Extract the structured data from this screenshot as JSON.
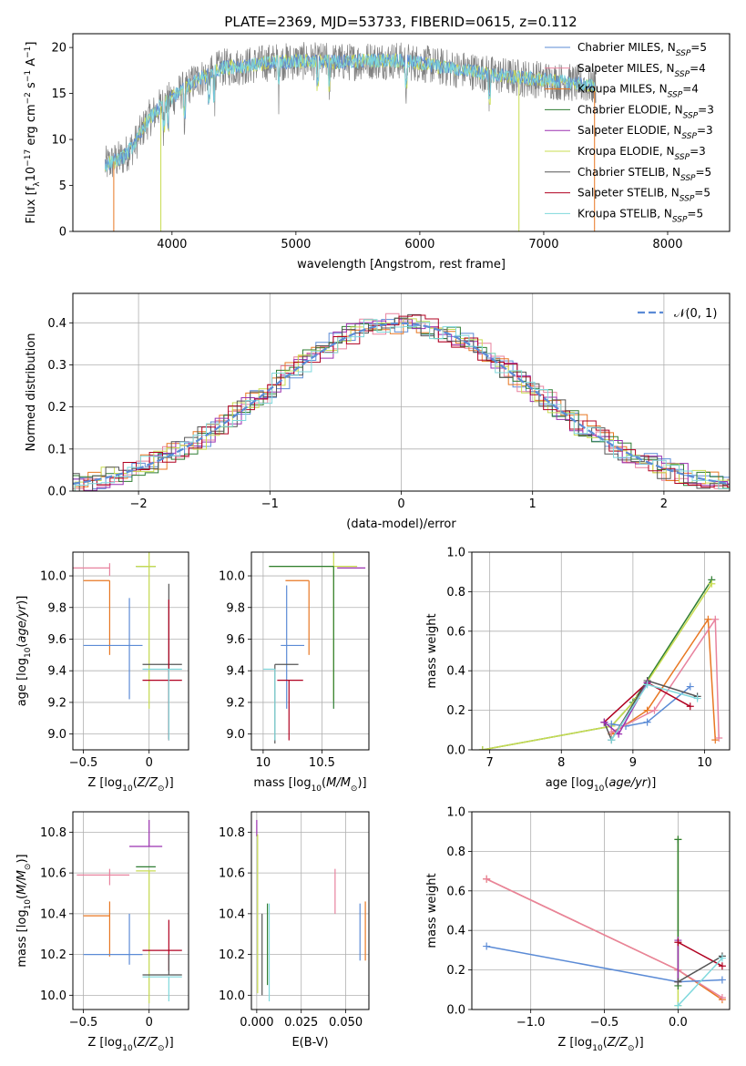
{
  "figure_title": "PLATE=2369, MJD=53733, FIBERID=0615, z=0.112",
  "colors": {
    "chabrier_miles": "#5b8bd6",
    "salpeter_miles": "#e8829e",
    "kroupa_miles": "#e87722",
    "chabrier_elodie": "#2e7d32",
    "salpeter_elodie": "#9b30b0",
    "kroupa_elodie": "#c8dc50",
    "chabrier_stelib": "#555555",
    "salpeter_stelib": "#b00020",
    "kroupa_stelib": "#7fd8dc",
    "spectrum_data": "#808080",
    "gauss": "#5b8bd6",
    "grid": "#b0b0b0"
  },
  "chart_data": [
    {
      "id": "spectrum",
      "type": "line",
      "title": "PLATE=2369, MJD=53733, FIBERID=0615, z=0.112",
      "xlabel": "wavelength [Angstrom, rest frame]",
      "ylabel": "Flux [f",
      "ylabel_full": "Flux [fλ10⁻¹⁷ erg cm⁻² s⁻¹ A⁻¹]",
      "xlim": [
        3200,
        8500
      ],
      "ylim": [
        0,
        21.5
      ],
      "xticks": [
        4000,
        5000,
        6000,
        7000,
        8000
      ],
      "yticks": [
        0,
        5,
        10,
        15,
        20
      ],
      "grid": false,
      "legend_position": "right",
      "legend": [
        {
          "key": "chabrier_miles",
          "label": "Chabrier MILES, N",
          "sub": "SSP",
          "val": "=5"
        },
        {
          "key": "salpeter_miles",
          "label": "Salpeter MILES, N",
          "sub": "SSP",
          "val": "=4"
        },
        {
          "key": "kroupa_miles",
          "label": "Kroupa MILES, N",
          "sub": "SSP",
          "val": "=4"
        },
        {
          "key": "chabrier_elodie",
          "label": "Chabrier ELODIE, N",
          "sub": "SSP",
          "val": "=3"
        },
        {
          "key": "salpeter_elodie",
          "label": "Salpeter ELODIE, N",
          "sub": "SSP",
          "val": "=3"
        },
        {
          "key": "kroupa_elodie",
          "label": "Kroupa ELODIE, N",
          "sub": "SSP",
          "val": "=3"
        },
        {
          "key": "chabrier_stelib",
          "label": "Chabrier STELIB, N",
          "sub": "SSP",
          "val": "=5"
        },
        {
          "key": "salpeter_stelib",
          "label": "Salpeter STELIB, N",
          "sub": "SSP",
          "val": "=5"
        },
        {
          "key": "kroupa_stelib",
          "label": "Kroupa STELIB, N",
          "sub": "SSP",
          "val": "=5"
        }
      ],
      "continuum": [
        [
          3460,
          7.2
        ],
        [
          3600,
          8.0
        ],
        [
          3700,
          9.5
        ],
        [
          3800,
          12.0
        ],
        [
          3900,
          13.5
        ],
        [
          4000,
          14.5
        ],
        [
          4100,
          15.5
        ],
        [
          4200,
          16.5
        ],
        [
          4300,
          17.0
        ],
        [
          4400,
          17.8
        ],
        [
          4600,
          18.0
        ],
        [
          4800,
          18.4
        ],
        [
          5000,
          18.5
        ],
        [
          5200,
          18.5
        ],
        [
          5400,
          18.4
        ],
        [
          5600,
          18.6
        ],
        [
          5800,
          18.6
        ],
        [
          6000,
          18.3
        ],
        [
          6200,
          17.8
        ],
        [
          6400,
          17.5
        ],
        [
          6600,
          17.0
        ],
        [
          6800,
          16.7
        ],
        [
          7000,
          16.5
        ],
        [
          7200,
          16.2
        ],
        [
          7400,
          15.8
        ]
      ],
      "model_dropouts": [
        {
          "key": "kroupa_miles",
          "x": 3530
        },
        {
          "key": "kroupa_elodie",
          "x": 3910
        },
        {
          "key": "kroupa_elodie",
          "x": 6800
        },
        {
          "key": "kroupa_miles",
          "x": 7410
        }
      ]
    },
    {
      "id": "residuals",
      "type": "histogram",
      "xlabel": "(data-model)/error",
      "ylabel": "Normed distribution",
      "xlim": [
        -2.5,
        2.5
      ],
      "ylim": [
        0,
        0.47
      ],
      "xticks": [
        -2,
        -1,
        0,
        1,
        2
      ],
      "yticks": [
        0.0,
        0.1,
        0.2,
        0.3,
        0.4
      ],
      "grid": true,
      "legend": [
        {
          "label": "N(0,1)",
          "display": "𝒩(0, 1)"
        }
      ],
      "gauss": {
        "mu": 0,
        "sigma": 1
      },
      "bin_width": 0.1
    },
    {
      "id": "age_vs_Z",
      "type": "errorbar",
      "xlabel": "Z [log",
      "xlabel_full": "Z [log₁₀(Z/Z☉)]",
      "ylabel": "age  [log₁₀(age/yr)]",
      "xlim": [
        -0.58,
        0.3
      ],
      "ylim": [
        8.9,
        10.15
      ],
      "xticks": [
        -0.5,
        0.0
      ],
      "yticks": [
        9.0,
        9.2,
        9.4,
        9.6,
        9.8,
        10.0
      ],
      "grid": true,
      "points": [
        {
          "key": "salpeter_miles",
          "x": -0.3,
          "y": 10.05,
          "xerr": [
            0.55,
            0.0
          ],
          "yerr": [
            0.05,
            0.03
          ]
        },
        {
          "key": "kroupa_miles",
          "x": -0.3,
          "y": 9.97,
          "xerr": [
            0.2,
            0.0
          ],
          "yerr": [
            0.47,
            0.0
          ]
        },
        {
          "key": "chabrier_miles",
          "x": -0.15,
          "y": 9.56,
          "xerr": [
            0.35,
            0.1
          ],
          "yerr": [
            0.34,
            0.3
          ]
        },
        {
          "key": "chabrier_elodie",
          "x": 0.0,
          "y": 10.06,
          "xerr": [
            0.1,
            0.05
          ],
          "yerr": [
            0.0,
            0.0
          ]
        },
        {
          "key": "kroupa_elodie",
          "x": 0.0,
          "y": 10.06,
          "xerr": [
            0.1,
            0.05
          ],
          "yerr": [
            0.9,
            0.09
          ]
        },
        {
          "key": "chabrier_stelib",
          "x": 0.15,
          "y": 9.44,
          "xerr": [
            0.2,
            0.1
          ],
          "yerr": [
            0.47,
            0.51
          ]
        },
        {
          "key": "salpeter_stelib",
          "x": 0.15,
          "y": 9.34,
          "xerr": [
            0.2,
            0.1
          ],
          "yerr": [
            0.38,
            0.51
          ]
        },
        {
          "key": "kroupa_stelib",
          "x": 0.15,
          "y": 9.41,
          "xerr": [
            0.2,
            0.1
          ],
          "yerr": [
            0.45,
            0.0
          ]
        }
      ]
    },
    {
      "id": "age_vs_mass",
      "type": "errorbar",
      "xlabel": "mass [log₁₀(M/M☉)]",
      "xlim": [
        9.9,
        10.9
      ],
      "ylim": [
        8.9,
        10.15
      ],
      "xticks": [
        10.0,
        10.5
      ],
      "yticks": [
        9.0,
        9.2,
        9.4,
        9.6,
        9.8,
        10.0
      ],
      "grid": true,
      "points": [
        {
          "key": "salpeter_elodie",
          "x": 10.75,
          "y": 10.05,
          "xerr": [
            0.12,
            0.12
          ],
          "yerr": [
            0.0,
            0.0
          ]
        },
        {
          "key": "kroupa_elodie",
          "x": 10.6,
          "y": 10.06,
          "xerr": [
            0.55,
            0.2
          ],
          "yerr": [
            0.85,
            0.1
          ]
        },
        {
          "key": "chabrier_elodie",
          "x": 10.6,
          "y": 10.06,
          "xerr": [
            0.55,
            0.0
          ],
          "yerr": [
            0.9,
            0.0
          ]
        },
        {
          "key": "salpeter_miles",
          "x": 10.59,
          "y": 10.05,
          "xerr": [
            0.0,
            0.0
          ],
          "yerr": [
            0.0,
            0.0
          ]
        },
        {
          "key": "kroupa_miles",
          "x": 10.39,
          "y": 9.97,
          "xerr": [
            0.2,
            0.0
          ],
          "yerr": [
            0.47,
            0.0
          ]
        },
        {
          "key": "chabrier_miles",
          "x": 10.2,
          "y": 9.56,
          "xerr": [
            0.05,
            0.15
          ],
          "yerr": [
            0.4,
            0.38
          ]
        },
        {
          "key": "chabrier_stelib",
          "x": 10.1,
          "y": 9.44,
          "xerr": [
            0.0,
            0.2
          ],
          "yerr": [
            0.5,
            0.0
          ]
        },
        {
          "key": "salpeter_stelib",
          "x": 10.22,
          "y": 9.34,
          "xerr": [
            0.1,
            0.12
          ],
          "yerr": [
            0.38,
            0.0
          ]
        },
        {
          "key": "kroupa_stelib",
          "x": 10.1,
          "y": 9.41,
          "xerr": [
            0.1,
            0.0
          ],
          "yerr": [
            0.45,
            0.0
          ]
        }
      ]
    },
    {
      "id": "weight_vs_age",
      "type": "line",
      "xlabel": "age  [log₁₀(age/yr)]",
      "ylabel": "mass weight",
      "xlim": [
        6.75,
        10.35
      ],
      "ylim": [
        0,
        1
      ],
      "xticks": [
        7,
        8,
        9,
        10
      ],
      "yticks": [
        0.0,
        0.2,
        0.4,
        0.6,
        0.8,
        1.0
      ],
      "grid": true,
      "series": [
        {
          "key": "chabrier_elodie",
          "x": [
            6.9,
            8.7,
            9.0,
            10.1
          ],
          "y": [
            0.0,
            0.12,
            0.24,
            0.86
          ]
        },
        {
          "key": "kroupa_elodie",
          "x": [
            6.9,
            8.7,
            9.05,
            10.1
          ],
          "y": [
            0.0,
            0.12,
            0.26,
            0.84
          ]
        },
        {
          "key": "chabrier_miles",
          "x": [
            8.7,
            8.9,
            9.2,
            9.8
          ],
          "y": [
            0.13,
            0.12,
            0.14,
            0.32
          ]
        },
        {
          "key": "kroupa_miles",
          "x": [
            8.7,
            9.2,
            10.05,
            10.15
          ],
          "y": [
            0.08,
            0.2,
            0.66,
            0.05
          ]
        },
        {
          "key": "salpeter_miles",
          "x": [
            8.7,
            9.3,
            10.15,
            10.2
          ],
          "y": [
            0.09,
            0.2,
            0.66,
            0.06
          ]
        },
        {
          "key": "salpeter_stelib",
          "x": [
            8.6,
            9.2,
            9.8
          ],
          "y": [
            0.14,
            0.34,
            0.22
          ]
        },
        {
          "key": "chabrier_stelib",
          "x": [
            8.6,
            8.7,
            9.2,
            9.9
          ],
          "y": [
            0.14,
            0.05,
            0.35,
            0.27
          ]
        },
        {
          "key": "salpeter_elodie",
          "x": [
            8.6,
            8.8,
            9.2
          ],
          "y": [
            0.14,
            0.08,
            0.34
          ]
        },
        {
          "key": "kroupa_stelib",
          "x": [
            8.7,
            9.2,
            9.9
          ],
          "y": [
            0.05,
            0.33,
            0.26
          ]
        }
      ]
    },
    {
      "id": "mass_vs_Z",
      "type": "errorbar",
      "xlabel": "Z [log₁₀(Z/Z☉)]",
      "ylabel": "mass [log₁₀(M/M☉)]",
      "xlim": [
        -0.58,
        0.3
      ],
      "ylim": [
        9.93,
        10.9
      ],
      "xticks": [
        -0.5,
        0.0
      ],
      "yticks": [
        10.0,
        10.2,
        10.4,
        10.6,
        10.8
      ],
      "grid": true,
      "points": [
        {
          "key": "salpeter_elodie",
          "x": 0.0,
          "y": 10.73,
          "xerr": [
            0.15,
            0.1
          ],
          "yerr": [
            0.0,
            0.13
          ]
        },
        {
          "key": "chabrier_elodie",
          "x": 0.0,
          "y": 10.63,
          "xerr": [
            0.1,
            0.05
          ],
          "yerr": [
            0.0,
            0.0
          ]
        },
        {
          "key": "kroupa_elodie",
          "x": 0.0,
          "y": 10.61,
          "xerr": [
            0.1,
            0.05
          ],
          "yerr": [
            0.65,
            0.0
          ]
        },
        {
          "key": "salpeter_miles",
          "x": -0.3,
          "y": 10.59,
          "xerr": [
            0.25,
            0.15
          ],
          "yerr": [
            0.05,
            0.03
          ]
        },
        {
          "key": "kroupa_miles",
          "x": -0.3,
          "y": 10.39,
          "xerr": [
            0.2,
            0.0
          ],
          "yerr": [
            0.2,
            0.07
          ]
        },
        {
          "key": "chabrier_miles",
          "x": -0.15,
          "y": 10.2,
          "xerr": [
            0.35,
            0.1
          ],
          "yerr": [
            0.05,
            0.2
          ]
        },
        {
          "key": "salpeter_stelib",
          "x": 0.15,
          "y": 10.22,
          "xerr": [
            0.2,
            0.1
          ],
          "yerr": [
            0.1,
            0.15
          ]
        },
        {
          "key": "chabrier_stelib",
          "x": 0.15,
          "y": 10.1,
          "xerr": [
            0.2,
            0.1
          ],
          "yerr": [
            0.0,
            0.1
          ]
        },
        {
          "key": "kroupa_stelib",
          "x": 0.15,
          "y": 10.09,
          "xerr": [
            0.2,
            0.1
          ],
          "yerr": [
            0.12,
            0.0
          ]
        }
      ]
    },
    {
      "id": "mass_vs_ebv",
      "type": "errorbar",
      "xlabel": "E(B-V)",
      "xlim": [
        -0.003,
        0.063
      ],
      "ylim": [
        9.93,
        10.9
      ],
      "xticks": [
        0.0,
        0.025,
        0.05
      ],
      "xticklabels": [
        "0.000",
        "0.025",
        "0.050"
      ],
      "yticks": [
        10.0,
        10.2,
        10.4,
        10.6,
        10.8
      ],
      "grid": true,
      "points": [
        {
          "key": "salpeter_elodie",
          "x": 0.0,
          "y": 10.78,
          "xerr": [
            0,
            0
          ],
          "yerr": [
            0.0,
            0.08
          ]
        },
        {
          "key": "kroupa_elodie",
          "x": 0.0005,
          "y": 10.61,
          "xerr": [
            0,
            0
          ],
          "yerr": [
            0.6,
            0.18
          ]
        },
        {
          "key": "chabrier_stelib",
          "x": 0.003,
          "y": 10.25,
          "xerr": [
            0,
            0
          ],
          "yerr": [
            0.25,
            0.15
          ]
        },
        {
          "key": "chabrier_elodie",
          "x": 0.006,
          "y": 10.25,
          "xerr": [
            0,
            0
          ],
          "yerr": [
            0.2,
            0.2
          ]
        },
        {
          "key": "kroupa_stelib",
          "x": 0.007,
          "y": 10.25,
          "xerr": [
            0,
            0
          ],
          "yerr": [
            0.28,
            0.2
          ]
        },
        {
          "key": "salpeter_miles",
          "x": 0.044,
          "y": 10.5,
          "xerr": [
            0,
            0
          ],
          "yerr": [
            0.1,
            0.12
          ]
        },
        {
          "key": "chabrier_miles",
          "x": 0.058,
          "y": 10.3,
          "xerr": [
            0,
            0
          ],
          "yerr": [
            0.13,
            0.15
          ]
        },
        {
          "key": "kroupa_miles",
          "x": 0.061,
          "y": 10.3,
          "xerr": [
            0,
            0
          ],
          "yerr": [
            0.13,
            0.16
          ]
        }
      ]
    },
    {
      "id": "weight_vs_Z",
      "type": "line",
      "xlabel": "Z [log₁₀(Z/Z☉)]",
      "ylabel": "mass weight",
      "xlim": [
        -1.4,
        0.35
      ],
      "ylim": [
        0,
        1
      ],
      "xticks": [
        -1.0,
        -0.5,
        0.0
      ],
      "xticklabels": [
        "−1.0",
        "−0.5",
        "0.0"
      ],
      "yticks": [
        0.0,
        0.2,
        0.4,
        0.6,
        0.8,
        1.0
      ],
      "grid": true,
      "series": [
        {
          "key": "kroupa_miles",
          "x": [
            -1.3,
            0.0,
            0.3
          ],
          "y": [
            0.66,
            0.2,
            0.05
          ]
        },
        {
          "key": "salpeter_miles",
          "x": [
            -1.3,
            0.0,
            0.3
          ],
          "y": [
            0.66,
            0.2,
            0.06
          ]
        },
        {
          "key": "chabrier_miles",
          "x": [
            -1.3,
            0.0,
            0.3
          ],
          "y": [
            0.32,
            0.14,
            0.15
          ]
        },
        {
          "key": "kroupa_elodie",
          "x": [
            0.0,
            0.0
          ],
          "y": [
            0.02,
            0.86
          ]
        },
        {
          "key": "chabrier_elodie",
          "x": [
            0.0,
            0.0
          ],
          "y": [
            0.12,
            0.86
          ]
        },
        {
          "key": "salpeter_elodie",
          "x": [
            0.0,
            0.0
          ],
          "y": [
            0.14,
            0.35
          ]
        },
        {
          "key": "salpeter_stelib",
          "x": [
            0.0,
            0.3
          ],
          "y": [
            0.34,
            0.22
          ]
        },
        {
          "key": "chabrier_stelib",
          "x": [
            0.0,
            0.3
          ],
          "y": [
            0.14,
            0.27
          ]
        },
        {
          "key": "kroupa_stelib",
          "x": [
            0.0,
            0.3
          ],
          "y": [
            0.02,
            0.26
          ]
        }
      ]
    }
  ]
}
